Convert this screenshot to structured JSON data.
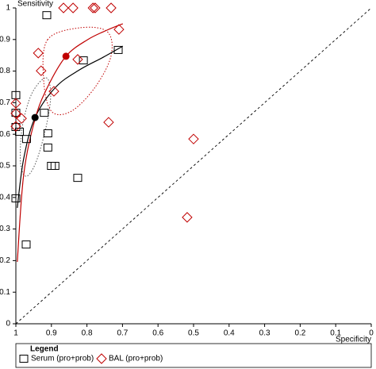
{
  "chart_data": {
    "type": "scatter",
    "x_label": "Specificity",
    "y_label": "Sensitivity",
    "xlim": [
      1,
      0
    ],
    "ylim": [
      0,
      1
    ],
    "xticks": [
      1,
      0.9,
      0.8,
      0.7,
      0.6,
      0.5,
      0.4,
      0.3,
      0.2,
      0.1,
      0
    ],
    "yticks": [
      0,
      0.1,
      0.2,
      0.3,
      0.4,
      0.5,
      0.6,
      0.7,
      0.8,
      0.9,
      1
    ],
    "legend_title": "Legend",
    "series": [
      {
        "name": "Serum (pro+prob)",
        "color": "#000000",
        "marker": "square",
        "x": [
          0.913,
          0.81,
          0.712,
          1.0,
          1.0,
          1.0,
          0.99,
          0.97,
          0.92,
          0.91,
          0.91,
          0.9,
          0.89,
          0.826,
          1.0,
          0.971
        ],
        "values": [
          0.977,
          0.834,
          0.867,
          0.724,
          0.668,
          0.623,
          0.608,
          0.585,
          0.668,
          0.603,
          0.558,
          0.5,
          0.5,
          0.462,
          0.397,
          0.251
        ]
      },
      {
        "name": "BAL (pro+prob)",
        "color": "#c00000",
        "marker": "diamond",
        "x": [
          0.866,
          0.839,
          0.783,
          0.777,
          0.732,
          0.71,
          0.937,
          0.826,
          0.929,
          0.893,
          1.0,
          1.0,
          0.984,
          1.0,
          0.739,
          0.5,
          0.518
        ],
        "values": [
          1.0,
          1.0,
          1.0,
          1.0,
          1.0,
          0.932,
          0.857,
          0.837,
          0.801,
          0.736,
          0.698,
          0.666,
          0.65,
          0.625,
          0.638,
          0.585,
          0.337
        ]
      }
    ],
    "curves": [
      {
        "color": "#000000",
        "x": [
          0.996,
          0.978,
          0.946,
          0.888,
          0.821,
          0.754,
          0.699
        ],
        "values": [
          0.367,
          0.523,
          0.653,
          0.749,
          0.804,
          0.844,
          0.879
        ]
      },
      {
        "color": "#c00000",
        "x": [
          0.996,
          0.978,
          0.946,
          0.911,
          0.859,
          0.799,
          0.743,
          0.699
        ],
        "values": [
          0.196,
          0.472,
          0.648,
          0.749,
          0.847,
          0.899,
          0.93,
          0.95
        ]
      }
    ],
    "regions": [
      {
        "color": "#555555",
        "x": [
          0.915,
          0.902,
          0.915,
          0.944,
          0.971,
          0.987,
          0.982,
          0.955
        ],
        "values": [
          0.779,
          0.724,
          0.623,
          0.51,
          0.467,
          0.51,
          0.623,
          0.729
        ]
      },
      {
        "color": "#c00000",
        "x": [
          0.911,
          0.821,
          0.743,
          0.732,
          0.777,
          0.844,
          0.9,
          0.922
        ],
        "values": [
          0.899,
          0.937,
          0.925,
          0.849,
          0.749,
          0.673,
          0.673,
          0.774
        ]
      }
    ],
    "summary_points": [
      {
        "color": "#000000",
        "x": 0.946,
        "y": 0.653
      },
      {
        "color": "#c00000",
        "x": 0.859,
        "y": 0.847
      }
    ]
  }
}
